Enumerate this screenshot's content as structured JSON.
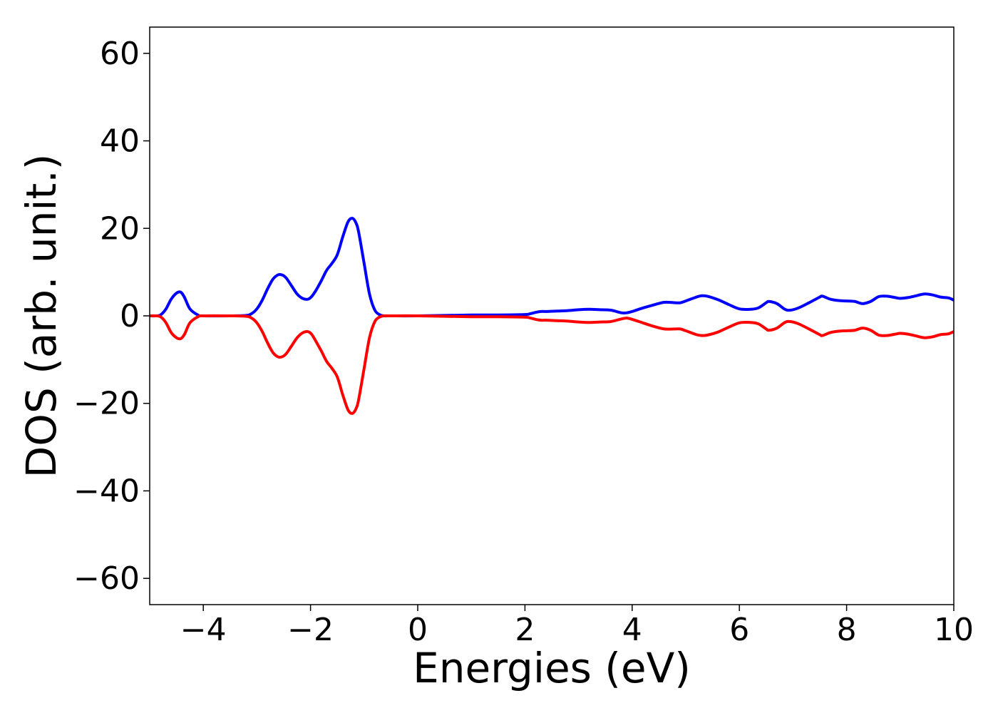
{
  "chart_data": {
    "type": "line",
    "title": "",
    "xlabel": "Energies (eV)",
    "ylabel": "DOS (arb. unit.)",
    "xlim": [
      -5,
      10
    ],
    "ylim": [
      -66,
      66
    ],
    "xticks": [
      -4,
      -2,
      0,
      2,
      4,
      6,
      8,
      10
    ],
    "yticks": [
      -60,
      -40,
      -20,
      0,
      20,
      40,
      60
    ],
    "xtick_labels": [
      "−4",
      "−2",
      "0",
      "2",
      "4",
      "6",
      "8",
      "10"
    ],
    "ytick_labels": [
      "−60",
      "−40",
      "−20",
      "0",
      "20",
      "40",
      "60"
    ],
    "grid": false,
    "legend": "none",
    "series": [
      {
        "color": "#0000ff",
        "x": [
          -5.0,
          -4.9,
          -4.8,
          -4.7,
          -4.6,
          -4.5,
          -4.42,
          -4.35,
          -4.25,
          -4.1,
          -4.0,
          -3.5,
          -3.2,
          -3.1,
          -3.0,
          -2.9,
          -2.8,
          -2.7,
          -2.6,
          -2.52,
          -2.45,
          -2.35,
          -2.25,
          -2.15,
          -2.05,
          -1.98,
          -1.9,
          -1.8,
          -1.7,
          -1.6,
          -1.5,
          -1.4,
          -1.3,
          -1.22,
          -1.15,
          -1.1,
          -1.0,
          -0.9,
          -0.8,
          -0.7,
          -0.62,
          -0.55,
          -0.5,
          0.0,
          1.0,
          1.5,
          2.0,
          2.1,
          2.2,
          2.3,
          2.4,
          2.6,
          2.8,
          3.0,
          3.2,
          3.4,
          3.6,
          3.8,
          3.9,
          4.0,
          4.2,
          4.4,
          4.6,
          4.8,
          4.9,
          5.0,
          5.2,
          5.3,
          5.4,
          5.6,
          5.8,
          6.0,
          6.2,
          6.35,
          6.5,
          6.55,
          6.7,
          6.85,
          6.95,
          7.1,
          7.3,
          7.5,
          7.55,
          7.7,
          7.85,
          8.0,
          8.15,
          8.3,
          8.45,
          8.6,
          8.75,
          8.9,
          9.0,
          9.15,
          9.3,
          9.45,
          9.6,
          9.75,
          9.9,
          10.0
        ],
        "y": [
          0.0,
          0.0,
          0.2,
          1.5,
          3.8,
          5.2,
          5.4,
          4.2,
          1.6,
          0.2,
          0.0,
          0.0,
          0.1,
          0.5,
          1.6,
          3.6,
          6.2,
          8.4,
          9.4,
          9.3,
          8.6,
          6.8,
          5.0,
          4.0,
          3.8,
          4.4,
          5.8,
          8.0,
          10.4,
          12.0,
          14.0,
          18.0,
          21.5,
          22.3,
          21.2,
          19.0,
          12.0,
          5.0,
          1.3,
          0.2,
          0.0,
          0.0,
          0.0,
          0.0,
          0.2,
          0.2,
          0.3,
          0.5,
          0.8,
          1.0,
          1.0,
          1.1,
          1.2,
          1.4,
          1.5,
          1.4,
          1.3,
          0.7,
          0.7,
          1.0,
          1.8,
          2.5,
          3.1,
          3.0,
          3.0,
          3.4,
          4.3,
          4.6,
          4.5,
          3.7,
          2.6,
          1.6,
          1.5,
          1.8,
          3.0,
          3.3,
          2.8,
          1.5,
          1.3,
          1.8,
          3.0,
          4.3,
          4.5,
          3.8,
          3.5,
          3.4,
          3.3,
          2.8,
          3.3,
          4.4,
          4.5,
          4.2,
          4.0,
          4.2,
          4.6,
          5.0,
          4.8,
          4.3,
          4.1,
          3.6
        ]
      },
      {
        "color": "#ff0000",
        "x": [
          -5.0,
          -4.9,
          -4.8,
          -4.7,
          -4.6,
          -4.5,
          -4.42,
          -4.35,
          -4.25,
          -4.1,
          -4.0,
          -3.5,
          -3.2,
          -3.1,
          -3.0,
          -2.9,
          -2.8,
          -2.7,
          -2.6,
          -2.52,
          -2.45,
          -2.35,
          -2.25,
          -2.15,
          -2.05,
          -1.98,
          -1.9,
          -1.8,
          -1.7,
          -1.6,
          -1.5,
          -1.4,
          -1.3,
          -1.22,
          -1.15,
          -1.1,
          -1.0,
          -0.9,
          -0.8,
          -0.7,
          -0.62,
          -0.55,
          -0.5,
          0.0,
          1.0,
          1.5,
          2.0,
          2.1,
          2.2,
          2.3,
          2.4,
          2.6,
          2.8,
          3.0,
          3.2,
          3.4,
          3.6,
          3.8,
          3.9,
          4.0,
          4.2,
          4.4,
          4.6,
          4.8,
          4.9,
          5.0,
          5.2,
          5.3,
          5.4,
          5.6,
          5.8,
          6.0,
          6.2,
          6.35,
          6.5,
          6.55,
          6.7,
          6.85,
          6.95,
          7.1,
          7.3,
          7.5,
          7.55,
          7.7,
          7.85,
          8.0,
          8.15,
          8.3,
          8.45,
          8.6,
          8.75,
          8.9,
          9.0,
          9.15,
          9.3,
          9.45,
          9.6,
          9.75,
          9.9,
          10.0
        ],
        "y": [
          0.0,
          0.0,
          -0.2,
          -1.5,
          -3.8,
          -5.0,
          -5.2,
          -4.2,
          -1.6,
          -0.2,
          0.0,
          0.0,
          -0.1,
          -0.5,
          -1.6,
          -3.6,
          -6.2,
          -8.4,
          -9.4,
          -9.3,
          -8.6,
          -6.8,
          -5.0,
          -3.9,
          -3.6,
          -4.2,
          -5.8,
          -8.0,
          -10.4,
          -12.0,
          -14.0,
          -18.0,
          -21.5,
          -22.3,
          -21.2,
          -19.0,
          -12.0,
          -5.0,
          -1.3,
          -0.2,
          0.0,
          0.0,
          0.0,
          0.0,
          -0.2,
          -0.2,
          -0.3,
          -0.5,
          -0.8,
          -1.0,
          -1.0,
          -1.1,
          -1.2,
          -1.4,
          -1.5,
          -1.4,
          -1.3,
          -0.7,
          -0.5,
          -0.8,
          -1.6,
          -2.4,
          -3.0,
          -3.0,
          -3.0,
          -3.4,
          -4.3,
          -4.5,
          -4.4,
          -3.7,
          -2.6,
          -1.6,
          -1.5,
          -1.8,
          -3.0,
          -3.3,
          -2.8,
          -1.5,
          -1.3,
          -1.8,
          -3.0,
          -4.3,
          -4.5,
          -3.8,
          -3.5,
          -3.4,
          -3.3,
          -2.8,
          -3.3,
          -4.4,
          -4.5,
          -4.2,
          -4.0,
          -4.2,
          -4.6,
          -5.0,
          -4.8,
          -4.3,
          -4.1,
          -3.6
        ]
      }
    ]
  }
}
